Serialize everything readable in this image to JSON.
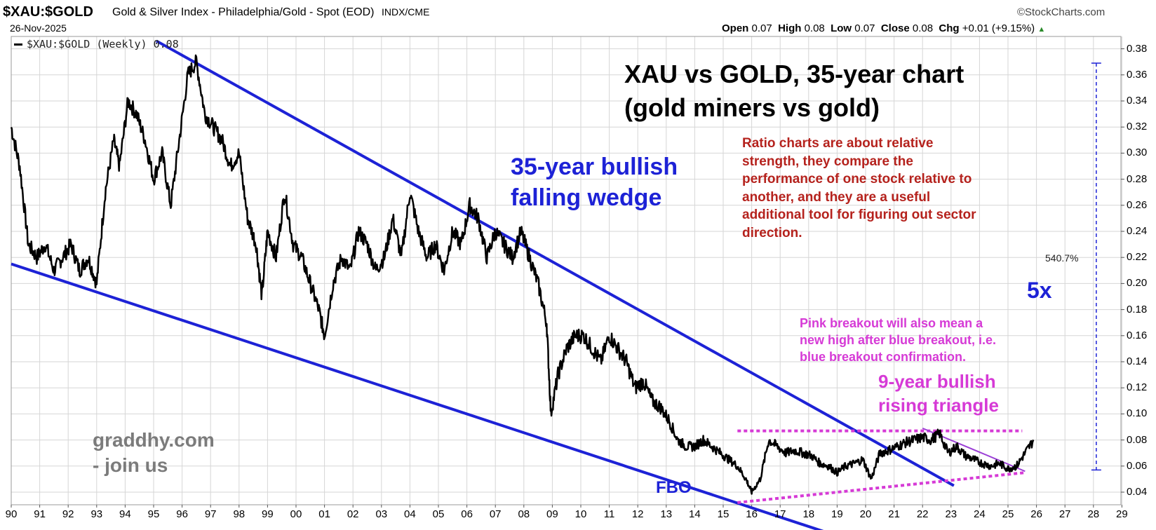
{
  "header": {
    "symbol": "$XAU:$GOLD",
    "description": "Gold & Silver Index - Philadelphia/Gold - Spot (EOD)",
    "exchange": "INDX/CME",
    "source": "©StockCharts.com",
    "date": "26-Nov-2025",
    "ohlc": {
      "open_label": "Open",
      "open": "0.07",
      "high_label": "High",
      "high": "0.08",
      "low_label": "Low",
      "low": "0.07",
      "close_label": "Close",
      "close": "0.08",
      "chg_label": "Chg",
      "chg": "+0.01 (+9.15%)"
    }
  },
  "legend": {
    "text": "$XAU:$GOLD (Weekly) 0.08"
  },
  "annotations": {
    "title_line1": "XAU vs GOLD, 35-year chart",
    "title_line2": "(gold miners vs gold)",
    "wedge_line1": "35-year bullish",
    "wedge_line2": "falling wedge",
    "ratio_lines": [
      "Ratio charts are about relative",
      "strength, they compare the",
      "performance of one stock relative to",
      "another, and they are a useful",
      "additional tool for figuring out sector",
      "direction."
    ],
    "pink_lines": [
      "Pink breakout will also mean a",
      "new high after blue breakout, i.e.",
      "blue breakout confirmation."
    ],
    "triangle_line1": "9-year bullish",
    "triangle_line2": "rising triangle",
    "five_x": "5x",
    "pct": "540.7%",
    "fbo": "FBO",
    "brand_line1": "graddhy.com",
    "brand_line2": "- join us"
  },
  "colors": {
    "price": "#000000",
    "wedge": "#1d22d6",
    "pink": "#d63ad6",
    "ratio_text": "#b5221d",
    "brand_text": "#7b7b7b",
    "grid": "#d6d6d6"
  },
  "chart_data": {
    "type": "line",
    "frequency": "weekly",
    "ylim": [
      0.03,
      0.385
    ],
    "xlim": [
      1990,
      2030
    ],
    "yticks": [
      "0.04",
      "0.06",
      "0.08",
      "0.10",
      "0.12",
      "0.14",
      "0.16",
      "0.18",
      "0.20",
      "0.22",
      "0.24",
      "0.26",
      "0.28",
      "0.30",
      "0.32",
      "0.34",
      "0.36",
      "0.38"
    ],
    "xticks": [
      "90",
      "91",
      "92",
      "93",
      "94",
      "95",
      "96",
      "97",
      "98",
      "99",
      "00",
      "01",
      "02",
      "03",
      "04",
      "05",
      "06",
      "07",
      "08",
      "09",
      "10",
      "11",
      "12",
      "13",
      "14",
      "15",
      "16",
      "17",
      "18",
      "19",
      "20",
      "21",
      "22",
      "23",
      "24",
      "25",
      "26",
      "27",
      "28",
      "29"
    ],
    "series": [
      {
        "x": [
          1990.0,
          1990.3,
          1990.6,
          1990.9,
          1991.2,
          1991.5,
          1991.8,
          1992.1,
          1992.4,
          1992.7,
          1993.0,
          1993.3,
          1993.6,
          1993.8,
          1994.1,
          1994.4,
          1994.7,
          1995.0,
          1995.3,
          1995.6,
          1995.9,
          1996.2,
          1996.5,
          1996.8,
          1997.1,
          1997.4,
          1997.7,
          1998.0,
          1998.3,
          1998.6,
          1998.8,
          1999.0,
          1999.3,
          1999.6,
          1999.9,
          2000.2,
          2000.5,
          2000.8,
          2001.0,
          2001.3,
          2001.6,
          2001.9,
          2002.2,
          2002.5,
          2002.8,
          2003.1,
          2003.4,
          2003.7,
          2004.0,
          2004.3,
          2004.6,
          2004.9,
          2005.2,
          2005.5,
          2005.8,
          2006.1,
          2006.4,
          2006.7,
          2007.0,
          2007.3,
          2007.6,
          2007.9,
          2008.2,
          2008.5,
          2008.8,
          2008.95,
          2009.2,
          2009.5,
          2009.8,
          2010.1,
          2010.4,
          2010.7,
          2011.0,
          2011.3,
          2011.6,
          2011.9,
          2012.2,
          2012.5,
          2012.8,
          2013.1,
          2013.4,
          2013.7,
          2014.0,
          2014.3,
          2014.6,
          2014.9,
          2015.2,
          2015.5,
          2015.8,
          2016.0,
          2016.3,
          2016.6,
          2016.9,
          2017.2,
          2017.5,
          2017.8,
          2018.1,
          2018.4,
          2018.7,
          2019.0,
          2019.3,
          2019.6,
          2019.9,
          2020.2,
          2020.5,
          2020.8,
          2021.1,
          2021.4,
          2021.7,
          2022.0,
          2022.3,
          2022.6,
          2022.9,
          2023.2,
          2023.5,
          2023.8,
          2024.1,
          2024.4,
          2024.7,
          2025.0,
          2025.3,
          2025.6,
          2025.9
        ],
        "values": [
          0.32,
          0.29,
          0.23,
          0.22,
          0.23,
          0.21,
          0.22,
          0.23,
          0.21,
          0.22,
          0.2,
          0.27,
          0.31,
          0.29,
          0.34,
          0.33,
          0.31,
          0.28,
          0.3,
          0.26,
          0.31,
          0.36,
          0.37,
          0.33,
          0.32,
          0.31,
          0.29,
          0.3,
          0.25,
          0.23,
          0.19,
          0.24,
          0.22,
          0.27,
          0.23,
          0.22,
          0.2,
          0.18,
          0.16,
          0.2,
          0.22,
          0.21,
          0.24,
          0.23,
          0.21,
          0.22,
          0.25,
          0.22,
          0.27,
          0.24,
          0.22,
          0.23,
          0.21,
          0.24,
          0.23,
          0.26,
          0.25,
          0.22,
          0.24,
          0.23,
          0.22,
          0.24,
          0.22,
          0.2,
          0.17,
          0.1,
          0.13,
          0.15,
          0.16,
          0.16,
          0.15,
          0.14,
          0.16,
          0.15,
          0.14,
          0.12,
          0.125,
          0.11,
          0.105,
          0.095,
          0.08,
          0.075,
          0.075,
          0.08,
          0.075,
          0.07,
          0.065,
          0.06,
          0.05,
          0.04,
          0.05,
          0.08,
          0.075,
          0.07,
          0.072,
          0.07,
          0.068,
          0.062,
          0.06,
          0.055,
          0.06,
          0.062,
          0.065,
          0.05,
          0.07,
          0.072,
          0.075,
          0.078,
          0.08,
          0.082,
          0.08,
          0.085,
          0.07,
          0.075,
          0.068,
          0.065,
          0.062,
          0.06,
          0.062,
          0.058,
          0.06,
          0.07,
          0.08
        ]
      }
    ],
    "trendlines": [
      {
        "kind": "wedge-upper",
        "x": [
          1995.1,
          2023.1
        ],
        "y": [
          0.386,
          0.045
        ]
      },
      {
        "kind": "wedge-lower",
        "x": [
          1990.0,
          2019.9
        ],
        "y": [
          0.215,
          0.0
        ]
      },
      {
        "kind": "triangle-top",
        "x": [
          2015.5,
          2025.5
        ],
        "y": [
          0.087,
          0.087
        ]
      },
      {
        "kind": "triangle-bottom",
        "x": [
          2015.5,
          2025.6
        ],
        "y": [
          0.032,
          0.055
        ]
      },
      {
        "kind": "triangle-upper",
        "x": [
          2022.0,
          2025.6
        ],
        "y": [
          0.089,
          0.056
        ]
      },
      {
        "kind": "measure",
        "x": [
          2028.1,
          2028.1
        ],
        "y": [
          0.369,
          0.057
        ]
      }
    ]
  }
}
